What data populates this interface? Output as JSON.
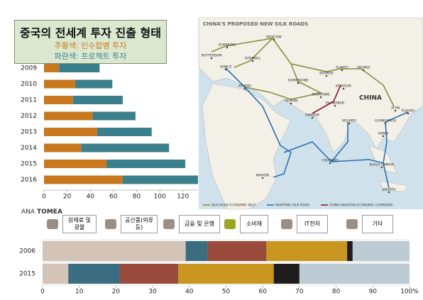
{
  "chart_data": [
    {
      "type": "bar",
      "orientation": "horizontal",
      "stacked": true,
      "title": "중국의 전세계 투자 진출 형태",
      "categories": [
        "2009",
        "2010",
        "2011",
        "2012",
        "2013",
        "2014",
        "2015",
        "2016"
      ],
      "series": [
        {
          "name": "주황색: 인수합병 투자",
          "color": "#c8781e",
          "values": [
            13,
            27,
            25,
            42,
            46,
            32,
            54,
            68
          ]
        },
        {
          "name": "파란색: 프로젝트 투자",
          "color": "#3b7f8d",
          "values": [
            35,
            32,
            43,
            37,
            47,
            76,
            68,
            70
          ]
        }
      ],
      "xlim": [
        0,
        133
      ],
      "xticks": [
        0,
        20,
        40,
        60,
        80,
        100,
        120
      ],
      "grid": false
    },
    {
      "type": "bar",
      "orientation": "horizontal",
      "stacked": true,
      "categories": [
        "2006",
        "2015"
      ],
      "series": [
        {
          "name": "원재료 및 광물",
          "color": "#d4c4b7",
          "values": [
            39,
            7
          ]
        },
        {
          "name": "공산품(의류 등)",
          "color": "#3a6d80",
          "values": [
            6,
            14
          ]
        },
        {
          "name": "금융 및 은행",
          "color": "#9a4b3b",
          "values": [
            16,
            16
          ]
        },
        {
          "name": "소비재",
          "color": "#c9961f",
          "values": [
            22,
            26
          ]
        },
        {
          "name": "IT전자",
          "color": "#1e1c1c",
          "values": [
            1.5,
            7
          ]
        },
        {
          "name": "기타",
          "color": "#bccbd4",
          "values": [
            15.5,
            30
          ]
        }
      ],
      "xlim": [
        0,
        100
      ],
      "xticks": [
        0,
        10,
        20,
        30,
        40,
        50,
        60,
        70,
        80,
        90,
        {
          "value": 100,
          "label": "100%"
        }
      ],
      "grid": false
    }
  ],
  "map": {
    "title": "CHINA'S PROPOSED NEW SILK ROADS",
    "places": [
      "ROTTERDAM",
      "DUISBURG",
      "MOSCOW",
      "VENICE",
      "ISTANBUL",
      "ATHENS",
      "ALMATY",
      "URUMQI",
      "BISHKEK",
      "SAMARKAND",
      "DUSHANBE",
      "TEHRAN",
      "KASHGAR",
      "ISLAMABAD",
      "GWADAR",
      "CHINA",
      "XI'AN",
      "FUZHOU",
      "GUANGZHOU",
      "HANOI",
      "KOLKATA",
      "COLOMBO",
      "KUALA LUMPUR",
      "JAKARTA",
      "NAIROBI"
    ],
    "legend": [
      "SILK ROAD ECONOMIC BELT",
      "MARITIME SILK ROAD",
      "CHINA-PAKISTAN ECONOMIC CORRIDOR"
    ]
  },
  "brand": [
    "ANA",
    "TOMEA"
  ]
}
